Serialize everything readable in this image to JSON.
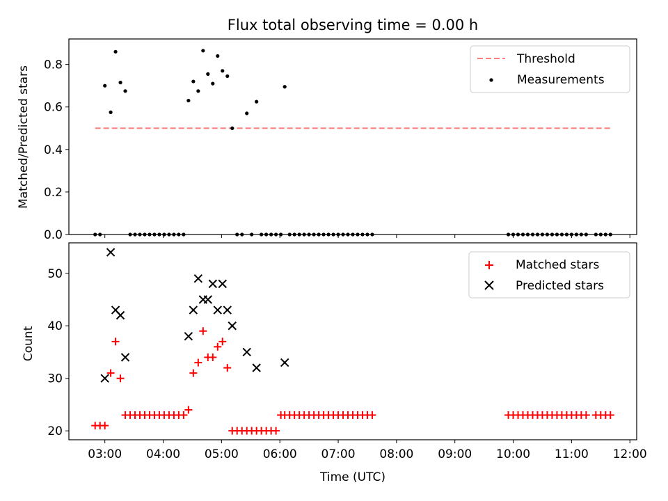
{
  "chart_data": [
    {
      "type": "scatter",
      "title": "Flux total observing time = 0.00 h",
      "xlabel": "",
      "ylabel": "Matched/Predicted stars",
      "xlim": [
        "02:23",
        "12:07"
      ],
      "ylim": [
        0.0,
        0.92
      ],
      "x_ticks": [
        "03:00",
        "04:00",
        "05:00",
        "06:00",
        "07:00",
        "08:00",
        "09:00",
        "10:00",
        "11:00",
        "12:00"
      ],
      "y_ticks": [
        "0.0",
        "0.2",
        "0.4",
        "0.6",
        "0.8"
      ],
      "legend": {
        "placement": "top-right",
        "entries": [
          "Threshold",
          "Measurements"
        ]
      },
      "colors": {
        "threshold": "#ff7f7f",
        "measurements": "#000000"
      },
      "threshold": {
        "name": "Threshold",
        "value": 0.5,
        "x_range": [
          "02:50",
          "11:40"
        ]
      },
      "series": [
        {
          "name": "Measurements",
          "points": [
            [
              "02:50",
              0.0
            ],
            [
              "02:55",
              0.0
            ],
            [
              "03:00",
              0.7
            ],
            [
              "03:06",
              0.575
            ],
            [
              "03:11",
              0.86
            ],
            [
              "03:16",
              0.715
            ],
            [
              "03:21",
              0.675
            ],
            [
              "03:26",
              0.0
            ],
            [
              "03:31",
              0.0
            ],
            [
              "03:36",
              0.0
            ],
            [
              "03:41",
              0.0
            ],
            [
              "03:46",
              0.0
            ],
            [
              "03:51",
              0.0
            ],
            [
              "03:56",
              0.0
            ],
            [
              "04:01",
              0.0
            ],
            [
              "04:06",
              0.0
            ],
            [
              "04:11",
              0.0
            ],
            [
              "04:16",
              0.0
            ],
            [
              "04:21",
              0.0
            ],
            [
              "04:26",
              0.63
            ],
            [
              "04:31",
              0.72
            ],
            [
              "04:36",
              0.675
            ],
            [
              "04:41",
              0.865
            ],
            [
              "04:46",
              0.755
            ],
            [
              "04:51",
              0.71
            ],
            [
              "04:56",
              0.84
            ],
            [
              "05:01",
              0.77
            ],
            [
              "05:06",
              0.745
            ],
            [
              "05:11",
              0.5
            ],
            [
              "05:16",
              0.0
            ],
            [
              "05:21",
              0.0
            ],
            [
              "05:26",
              0.57
            ],
            [
              "05:31",
              0.0
            ],
            [
              "05:36",
              0.625
            ],
            [
              "05:41",
              0.0
            ],
            [
              "05:46",
              0.0
            ],
            [
              "05:51",
              0.0
            ],
            [
              "05:56",
              0.0
            ],
            [
              "06:01",
              0.0
            ],
            [
              "06:05",
              0.695
            ],
            [
              "06:10",
              0.0
            ],
            [
              "06:15",
              0.0
            ],
            [
              "06:20",
              0.0
            ],
            [
              "06:25",
              0.0
            ],
            [
              "06:30",
              0.0
            ],
            [
              "06:35",
              0.0
            ],
            [
              "06:40",
              0.0
            ],
            [
              "06:45",
              0.0
            ],
            [
              "06:50",
              0.0
            ],
            [
              "06:55",
              0.0
            ],
            [
              "07:00",
              0.0
            ],
            [
              "07:05",
              0.0
            ],
            [
              "07:10",
              0.0
            ],
            [
              "07:15",
              0.0
            ],
            [
              "07:20",
              0.0
            ],
            [
              "07:25",
              0.0
            ],
            [
              "07:30",
              0.0
            ],
            [
              "07:35",
              0.0
            ],
            [
              "09:55",
              0.0
            ],
            [
              "10:00",
              0.0
            ],
            [
              "10:05",
              0.0
            ],
            [
              "10:10",
              0.0
            ],
            [
              "10:15",
              0.0
            ],
            [
              "10:20",
              0.0
            ],
            [
              "10:25",
              0.0
            ],
            [
              "10:30",
              0.0
            ],
            [
              "10:35",
              0.0
            ],
            [
              "10:40",
              0.0
            ],
            [
              "10:45",
              0.0
            ],
            [
              "10:50",
              0.0
            ],
            [
              "10:55",
              0.0
            ],
            [
              "11:00",
              0.0
            ],
            [
              "11:05",
              0.0
            ],
            [
              "11:10",
              0.0
            ],
            [
              "11:15",
              0.0
            ],
            [
              "11:25",
              0.0
            ],
            [
              "11:30",
              0.0
            ],
            [
              "11:35",
              0.0
            ],
            [
              "11:40",
              0.0
            ]
          ]
        }
      ]
    },
    {
      "type": "scatter",
      "title": "",
      "xlabel": "Time (UTC)",
      "ylabel": "Count",
      "xlim": [
        "02:23",
        "12:07"
      ],
      "ylim": [
        18.3,
        55.8
      ],
      "x_ticks": [
        "03:00",
        "04:00",
        "05:00",
        "06:00",
        "07:00",
        "08:00",
        "09:00",
        "10:00",
        "11:00",
        "12:00"
      ],
      "y_ticks": [
        "20",
        "30",
        "40",
        "50"
      ],
      "legend": {
        "placement": "top-right",
        "entries": [
          "Matched stars",
          "Predicted stars"
        ]
      },
      "colors": {
        "matched": "#ff0000",
        "predicted": "#000000"
      },
      "series": [
        {
          "name": "Matched stars",
          "marker": "plus",
          "points": [
            [
              "02:50",
              21
            ],
            [
              "02:55",
              21
            ],
            [
              "03:00",
              21
            ],
            [
              "03:06",
              31
            ],
            [
              "03:11",
              37
            ],
            [
              "03:16",
              30
            ],
            [
              "03:21",
              23
            ],
            [
              "03:26",
              23
            ],
            [
              "03:31",
              23
            ],
            [
              "03:36",
              23
            ],
            [
              "03:41",
              23
            ],
            [
              "03:46",
              23
            ],
            [
              "03:51",
              23
            ],
            [
              "03:56",
              23
            ],
            [
              "04:01",
              23
            ],
            [
              "04:06",
              23
            ],
            [
              "04:11",
              23
            ],
            [
              "04:16",
              23
            ],
            [
              "04:21",
              23
            ],
            [
              "04:26",
              24
            ],
            [
              "04:31",
              31
            ],
            [
              "04:36",
              33
            ],
            [
              "04:41",
              39
            ],
            [
              "04:46",
              34
            ],
            [
              "04:51",
              34
            ],
            [
              "04:56",
              36
            ],
            [
              "05:01",
              37
            ],
            [
              "05:06",
              32
            ],
            [
              "05:11",
              20
            ],
            [
              "05:16",
              20
            ],
            [
              "05:21",
              20
            ],
            [
              "05:26",
              20
            ],
            [
              "05:31",
              20
            ],
            [
              "05:36",
              20
            ],
            [
              "05:41",
              20
            ],
            [
              "05:46",
              20
            ],
            [
              "05:51",
              20
            ],
            [
              "05:56",
              20
            ],
            [
              "06:01",
              23
            ],
            [
              "06:05",
              23
            ],
            [
              "06:10",
              23
            ],
            [
              "06:15",
              23
            ],
            [
              "06:20",
              23
            ],
            [
              "06:25",
              23
            ],
            [
              "06:30",
              23
            ],
            [
              "06:35",
              23
            ],
            [
              "06:40",
              23
            ],
            [
              "06:45",
              23
            ],
            [
              "06:50",
              23
            ],
            [
              "06:55",
              23
            ],
            [
              "07:00",
              23
            ],
            [
              "07:05",
              23
            ],
            [
              "07:10",
              23
            ],
            [
              "07:15",
              23
            ],
            [
              "07:20",
              23
            ],
            [
              "07:25",
              23
            ],
            [
              "07:30",
              23
            ],
            [
              "07:35",
              23
            ],
            [
              "09:55",
              23
            ],
            [
              "10:00",
              23
            ],
            [
              "10:05",
              23
            ],
            [
              "10:10",
              23
            ],
            [
              "10:15",
              23
            ],
            [
              "10:20",
              23
            ],
            [
              "10:25",
              23
            ],
            [
              "10:30",
              23
            ],
            [
              "10:35",
              23
            ],
            [
              "10:40",
              23
            ],
            [
              "10:45",
              23
            ],
            [
              "10:50",
              23
            ],
            [
              "10:55",
              23
            ],
            [
              "11:00",
              23
            ],
            [
              "11:05",
              23
            ],
            [
              "11:10",
              23
            ],
            [
              "11:15",
              23
            ],
            [
              "11:25",
              23
            ],
            [
              "11:30",
              23
            ],
            [
              "11:35",
              23
            ],
            [
              "11:40",
              23
            ]
          ]
        },
        {
          "name": "Predicted stars",
          "marker": "x",
          "points": [
            [
              "03:00",
              30
            ],
            [
              "03:06",
              54
            ],
            [
              "03:11",
              43
            ],
            [
              "03:16",
              42
            ],
            [
              "03:21",
              34
            ],
            [
              "04:26",
              38
            ],
            [
              "04:31",
              43
            ],
            [
              "04:36",
              49
            ],
            [
              "04:41",
              45
            ],
            [
              "04:46",
              45
            ],
            [
              "04:51",
              48
            ],
            [
              "04:56",
              43
            ],
            [
              "05:01",
              48
            ],
            [
              "05:06",
              43
            ],
            [
              "05:11",
              40
            ],
            [
              "05:26",
              35
            ],
            [
              "05:36",
              32
            ],
            [
              "06:05",
              33
            ]
          ]
        }
      ]
    }
  ]
}
